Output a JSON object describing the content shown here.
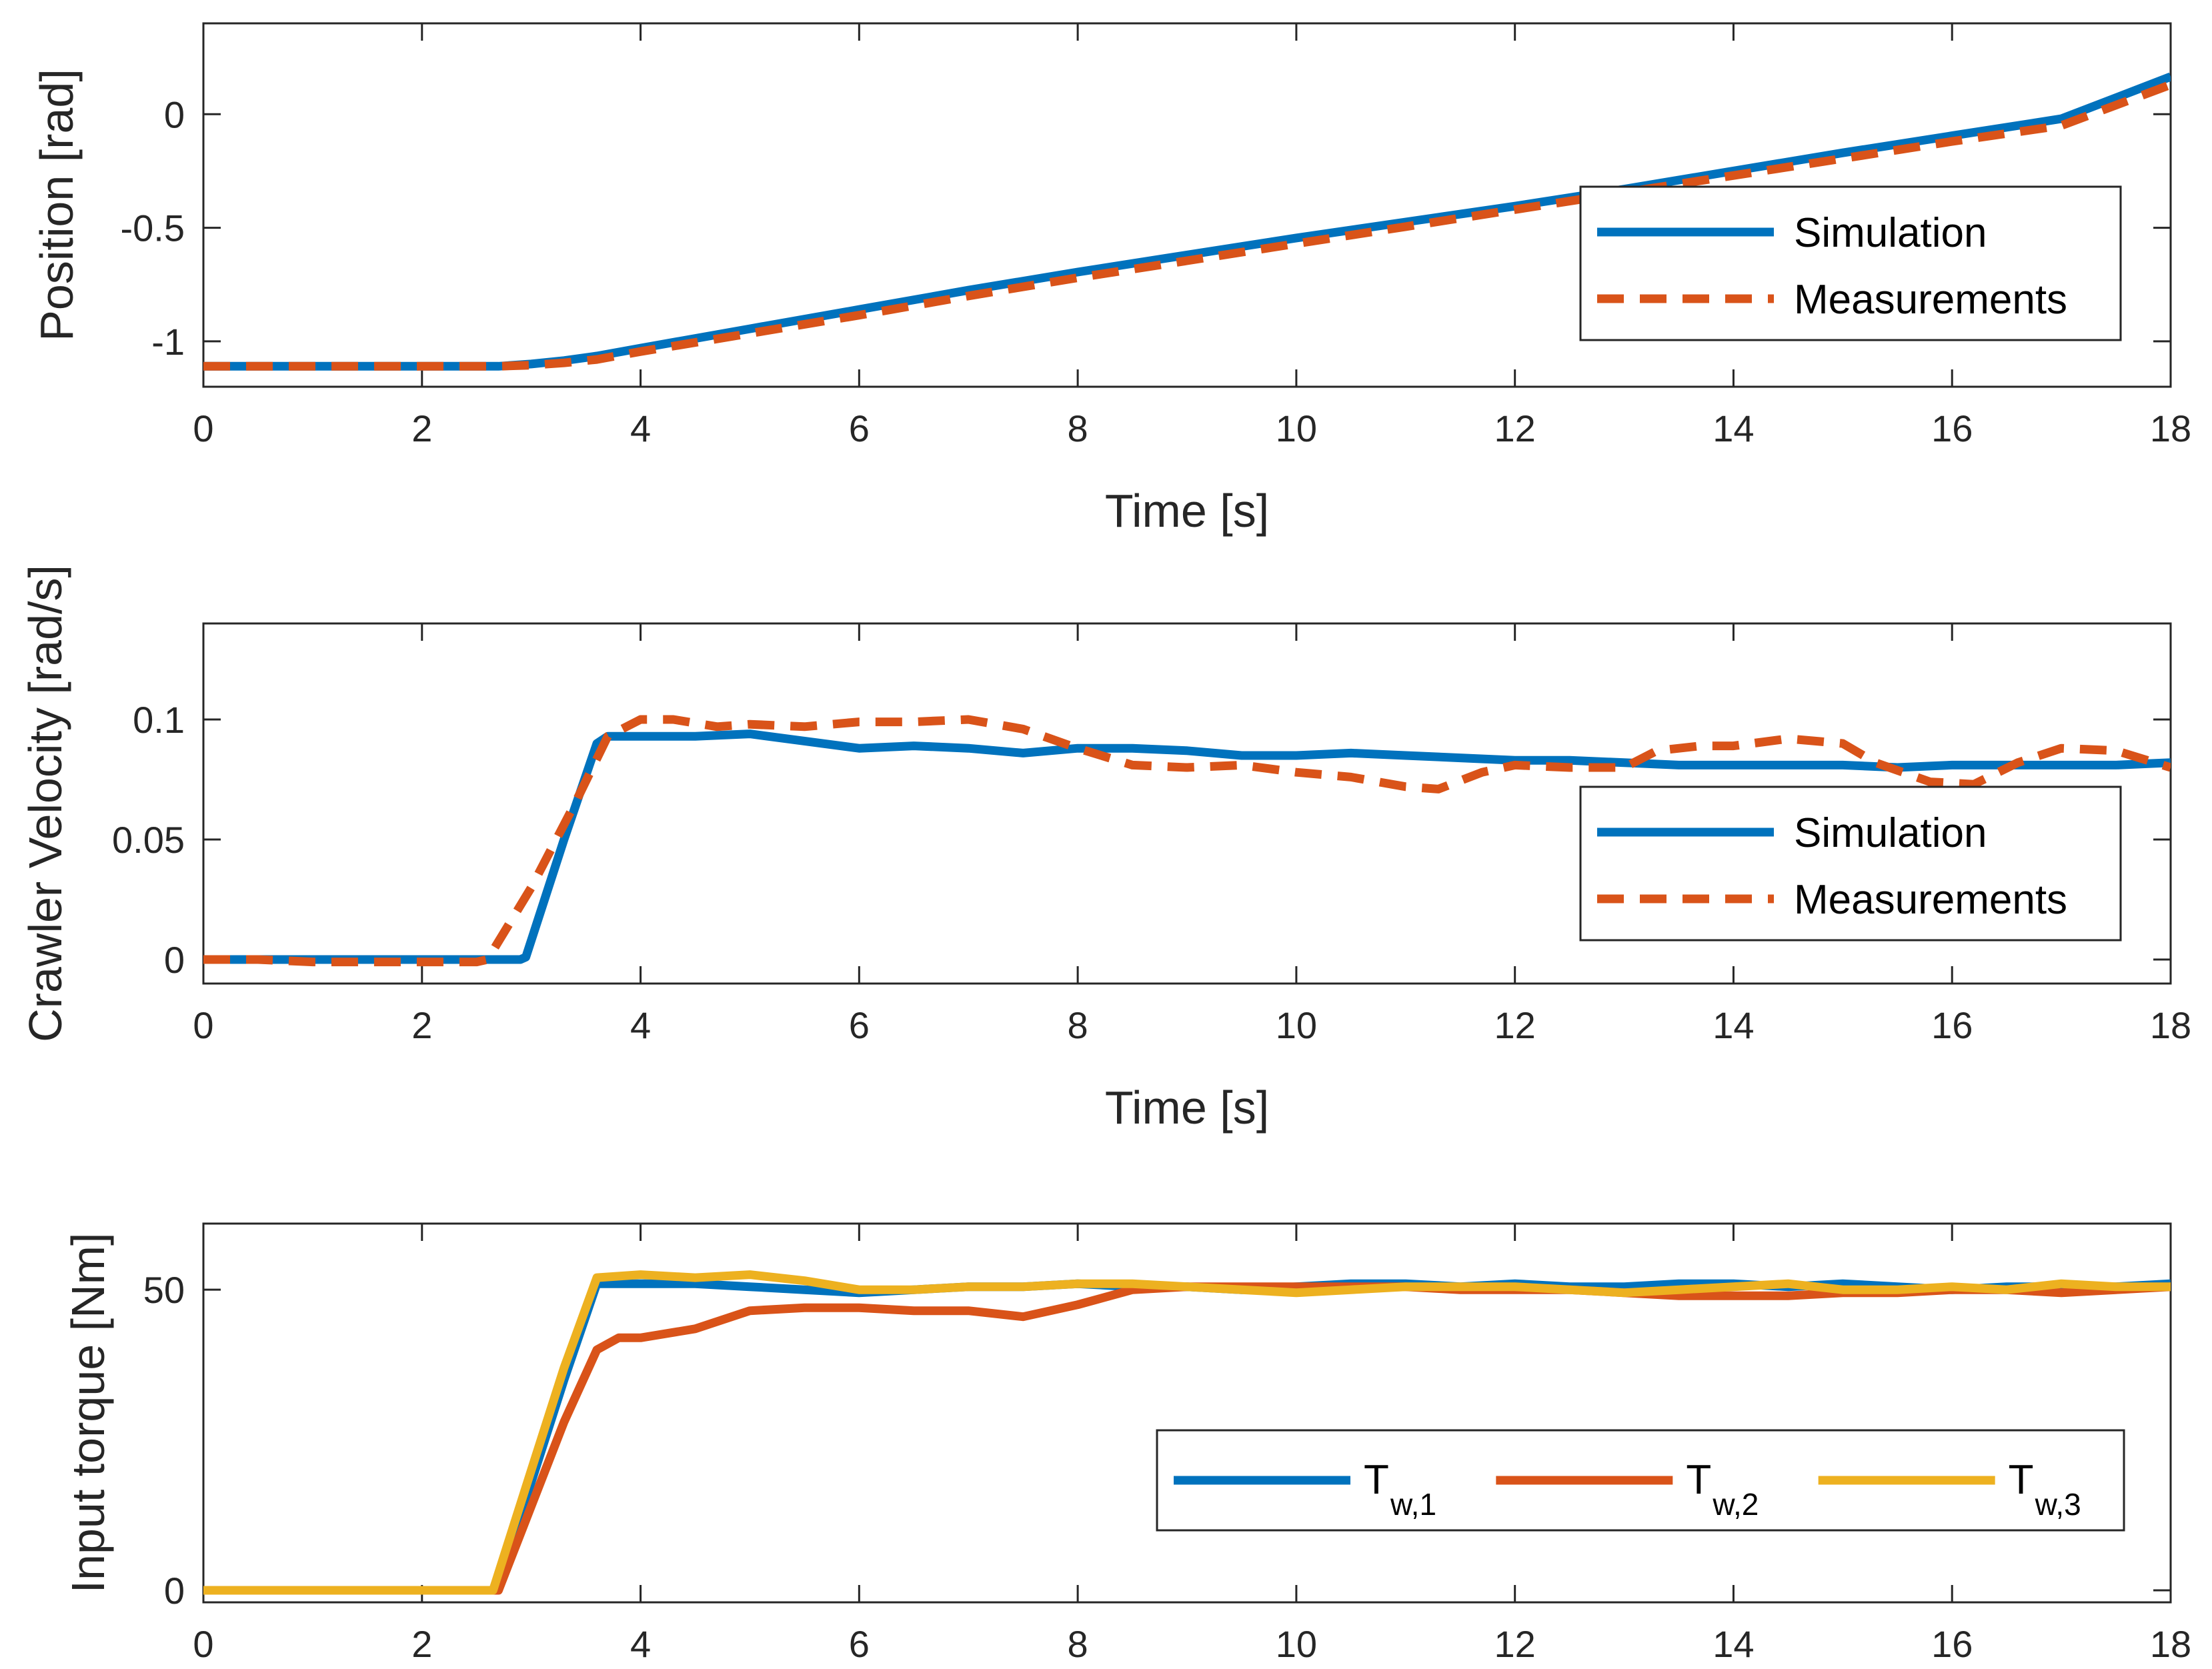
{
  "chart_data": [
    {
      "type": "line",
      "title": "",
      "xlabel": "Time [s]",
      "ylabel": "Position [rad]",
      "xlim": [
        0,
        18
      ],
      "ylim": [
        -1.2,
        0.4
      ],
      "xticks": [
        0,
        2,
        4,
        6,
        8,
        10,
        12,
        14,
        16,
        18
      ],
      "yticks": [
        -1,
        -0.5,
        0
      ],
      "xtick_labels": [
        "0",
        "2",
        "4",
        "6",
        "8",
        "10",
        "12",
        "14",
        "16",
        "18"
      ],
      "ytick_labels": [
        "-1",
        "-0.5",
        "0"
      ],
      "legend_position": "right",
      "series": [
        {
          "name": "Simulation",
          "style": "solid",
          "color": "#0072BD",
          "x": [
            0,
            1,
            2,
            2.7,
            3.0,
            3.3,
            3.6,
            4,
            5,
            6,
            7,
            8,
            9,
            10,
            11,
            12,
            13,
            14,
            15,
            16,
            17,
            18
          ],
          "y": [
            -1.11,
            -1.11,
            -1.11,
            -1.11,
            -1.1,
            -1.085,
            -1.065,
            -1.03,
            -0.945,
            -0.86,
            -0.775,
            -0.695,
            -0.62,
            -0.545,
            -0.475,
            -0.405,
            -0.33,
            -0.25,
            -0.17,
            -0.095,
            -0.02,
            0.165
          ]
        },
        {
          "name": "Measurements",
          "style": "dashed",
          "color": "#D95319",
          "x": [
            0,
            1,
            2,
            2.7,
            3.0,
            3.3,
            3.6,
            4,
            5,
            6,
            7,
            8,
            9,
            10,
            11,
            12,
            13,
            14,
            15,
            16,
            17,
            18
          ],
          "y": [
            -1.11,
            -1.11,
            -1.11,
            -1.11,
            -1.105,
            -1.095,
            -1.08,
            -1.045,
            -0.965,
            -0.885,
            -0.8,
            -0.72,
            -0.645,
            -0.57,
            -0.495,
            -0.42,
            -0.345,
            -0.27,
            -0.195,
            -0.12,
            -0.05,
            0.13
          ]
        }
      ]
    },
    {
      "type": "line",
      "title": "",
      "xlabel": "Time [s]",
      "ylabel": "Crawler Velocity [rad/s]",
      "xlim": [
        0,
        18
      ],
      "ylim": [
        -0.01,
        0.14
      ],
      "xticks": [
        0,
        2,
        4,
        6,
        8,
        10,
        12,
        14,
        16,
        18
      ],
      "yticks": [
        0,
        0.05,
        0.1
      ],
      "xtick_labels": [
        "0",
        "2",
        "4",
        "6",
        "8",
        "10",
        "12",
        "14",
        "16",
        "18"
      ],
      "ytick_labels": [
        "0",
        "0.05",
        "0.1"
      ],
      "legend_position": "right",
      "series": [
        {
          "name": "Simulation",
          "style": "solid",
          "color": "#0072BD",
          "x": [
            0,
            1,
            2,
            2.9,
            2.95,
            3.3,
            3.6,
            3.7,
            4,
            4.5,
            5,
            5.5,
            6,
            6.5,
            7,
            7.5,
            8,
            8.5,
            9,
            9.5,
            10,
            10.5,
            11,
            11.5,
            12,
            12.5,
            13,
            13.5,
            14,
            14.5,
            15,
            15.5,
            16,
            16.5,
            17,
            17.5,
            18
          ],
          "y": [
            0,
            0,
            0,
            0,
            0.001,
            0.05,
            0.09,
            0.093,
            0.093,
            0.093,
            0.094,
            0.091,
            0.088,
            0.089,
            0.088,
            0.086,
            0.088,
            0.088,
            0.087,
            0.085,
            0.085,
            0.086,
            0.085,
            0.084,
            0.083,
            0.083,
            0.082,
            0.081,
            0.081,
            0.081,
            0.081,
            0.08,
            0.081,
            0.081,
            0.081,
            0.081,
            0.082
          ]
        },
        {
          "name": "Measurements",
          "style": "dashed",
          "color": "#D95319",
          "x": [
            0,
            0.5,
            1,
            1.5,
            2,
            2.5,
            2.6,
            3.0,
            3.4,
            3.7,
            4,
            4.3,
            4.7,
            5,
            5.5,
            6,
            6.5,
            7,
            7.5,
            8,
            8.5,
            9,
            9.5,
            10,
            10.5,
            11,
            11.3,
            11.7,
            12,
            12.5,
            13,
            13.3,
            13.7,
            14,
            14.5,
            15,
            15.3,
            15.8,
            16.2,
            16.6,
            17,
            17.5,
            18
          ],
          "y": [
            0,
            0,
            -0.001,
            -0.001,
            -0.001,
            -0.001,
            0,
            0.03,
            0.065,
            0.093,
            0.1,
            0.1,
            0.097,
            0.098,
            0.097,
            0.099,
            0.099,
            0.1,
            0.096,
            0.088,
            0.081,
            0.08,
            0.081,
            0.078,
            0.076,
            0.072,
            0.071,
            0.078,
            0.081,
            0.08,
            0.08,
            0.087,
            0.089,
            0.089,
            0.092,
            0.09,
            0.082,
            0.074,
            0.073,
            0.082,
            0.088,
            0.087,
            0.08
          ]
        }
      ]
    },
    {
      "type": "line",
      "title": "",
      "xlabel": "",
      "ylabel": "Input torque [Nm]",
      "xlim": [
        0,
        18
      ],
      "ylim": [
        -2,
        61
      ],
      "xticks": [
        0,
        2,
        4,
        6,
        8,
        10,
        12,
        14,
        16,
        18
      ],
      "yticks": [
        0,
        50
      ],
      "xtick_labels": [
        "0",
        "2",
        "4",
        "6",
        "8",
        "10",
        "12",
        "14",
        "16",
        "18"
      ],
      "ytick_labels": [
        "0",
        "50"
      ],
      "legend_position": "bottom-right",
      "series": [
        {
          "name": "T",
          "subscript": "w,1",
          "style": "solid",
          "color": "#0072BD",
          "x": [
            0,
            1,
            2,
            2.65,
            3.0,
            3.3,
            3.6,
            4,
            4.5,
            5,
            5.5,
            6,
            6.5,
            7,
            7.5,
            8,
            8.5,
            9,
            9.5,
            10,
            10.5,
            11,
            11.5,
            12,
            12.5,
            13,
            13.5,
            14,
            14.5,
            15,
            15.5,
            16,
            16.5,
            17,
            17.5,
            18
          ],
          "y": [
            0,
            0,
            0,
            0,
            18,
            35,
            51,
            51,
            51,
            50.5,
            50,
            49.5,
            50,
            50.5,
            50.5,
            51,
            50.5,
            50.5,
            50,
            50.5,
            51,
            51,
            50.5,
            51,
            50.5,
            50.5,
            51,
            51,
            50.5,
            51,
            50.5,
            50,
            50.5,
            50.5,
            50.5,
            51
          ]
        },
        {
          "name": "T",
          "subscript": "w,2",
          "style": "solid",
          "color": "#D95319",
          "x": [
            0,
            1,
            2,
            2.7,
            3.0,
            3.3,
            3.6,
            3.8,
            4,
            4.5,
            5,
            5.5,
            6,
            6.5,
            7,
            7.5,
            8,
            8.5,
            9,
            9.5,
            10,
            10.5,
            11,
            11.5,
            12,
            12.5,
            13,
            13.5,
            14,
            14.5,
            15,
            15.5,
            16,
            16.5,
            17,
            17.5,
            18
          ],
          "y": [
            0,
            0,
            0,
            0,
            14,
            28,
            40,
            42,
            42,
            43.5,
            46.5,
            47,
            47,
            46.5,
            46.5,
            45.5,
            47.5,
            50,
            50.5,
            50.5,
            50.5,
            50.5,
            50.5,
            50,
            50,
            50,
            49.5,
            49,
            49,
            49,
            49.5,
            49.5,
            50,
            50,
            49.5,
            50,
            50.5
          ]
        },
        {
          "name": "T",
          "subscript": "w,3",
          "style": "solid",
          "color": "#EDB120",
          "x": [
            0,
            1,
            2,
            2.65,
            3.0,
            3.3,
            3.6,
            4,
            4.5,
            5,
            5.5,
            6,
            6.5,
            7,
            7.5,
            8,
            8.5,
            9,
            9.5,
            10,
            10.5,
            11,
            11.5,
            12,
            12.5,
            13,
            13.5,
            14,
            14.5,
            15,
            15.5,
            16,
            16.5,
            17,
            17.5,
            18
          ],
          "y": [
            0,
            0,
            0,
            0,
            20,
            37,
            52,
            52.5,
            52,
            52.5,
            51.5,
            50,
            50,
            50.5,
            50.5,
            51,
            51,
            50.5,
            50,
            49.5,
            50,
            50.5,
            50.5,
            50.5,
            50,
            49.5,
            50,
            50.5,
            51,
            50,
            50,
            50.5,
            50,
            51,
            50.5,
            50.5
          ]
        }
      ]
    }
  ]
}
